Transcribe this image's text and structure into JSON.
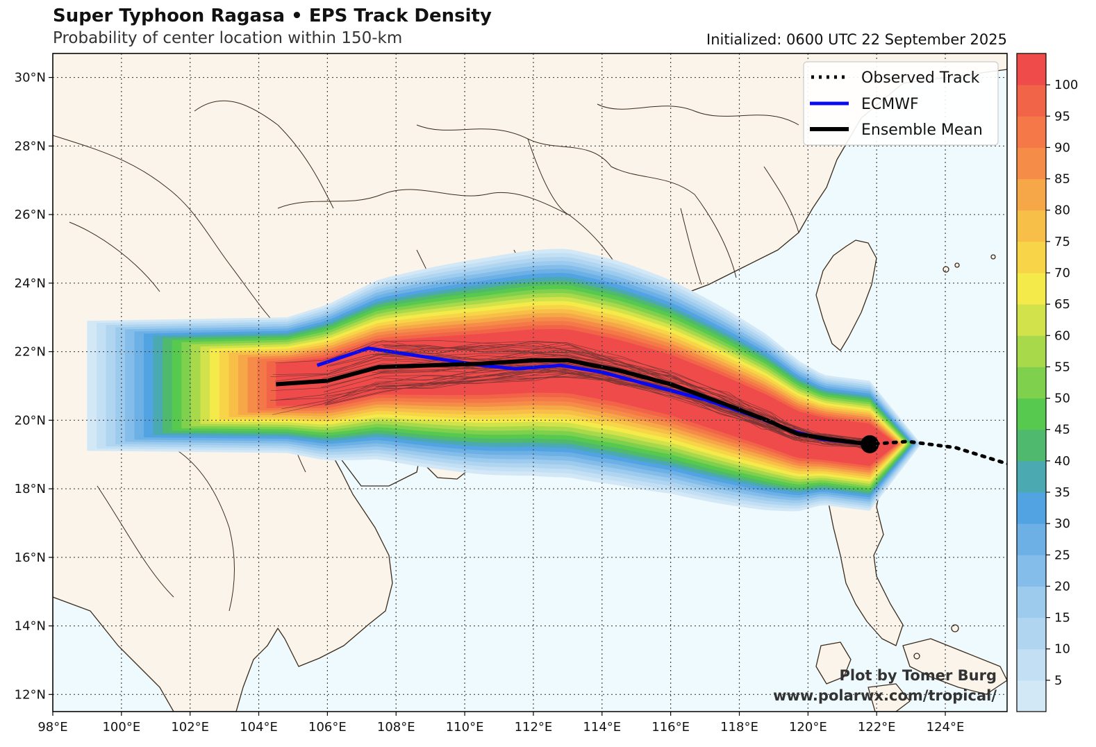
{
  "title": "Super Typhoon Ragasa • EPS Track Density",
  "subtitle": "Probability of center location within 150-km",
  "initialized": "Initialized: 0600 UTC 22 September 2025",
  "legend": {
    "observed": "Observed Track",
    "ecmwf": "ECMWF",
    "mean": "Ensemble Mean"
  },
  "credit": {
    "line1": "Plot by Tomer Burg",
    "line2": "www.polarwx.com/tropical/"
  },
  "colors": {
    "ocean": "#eefafd",
    "land": "#fbf4ea",
    "border": "#3a2a1a",
    "ecmwf": "#0a0aee",
    "mean": "#000000"
  },
  "chart_data": {
    "type": "map",
    "extent": {
      "lon": [
        98,
        125.8
      ],
      "lat": [
        11.5,
        30.7
      ]
    },
    "lon_ticks": [
      "98°E",
      "100°E",
      "102°E",
      "104°E",
      "106°E",
      "108°E",
      "110°E",
      "112°E",
      "114°E",
      "116°E",
      "118°E",
      "120°E",
      "122°E",
      "124°E"
    ],
    "lat_ticks": [
      "30°N",
      "28°N",
      "26°N",
      "24°N",
      "22°N",
      "20°N",
      "18°N",
      "16°N",
      "14°N",
      "12°N"
    ],
    "colorbar": {
      "ticks": [
        "100",
        "95",
        "90",
        "85",
        "80",
        "75",
        "70",
        "65",
        "60",
        "55",
        "50",
        "45",
        "40",
        "35",
        "30",
        "25",
        "20",
        "15",
        "10",
        "5"
      ],
      "colors": [
        "#d2e8f7",
        "#c2dff4",
        "#afd5f1",
        "#9ccbee",
        "#84bde9",
        "#6cb0e6",
        "#52a3e2",
        "#4aa9b1",
        "#4fba6e",
        "#57c94f",
        "#7fd14d",
        "#a8d94a",
        "#d2e24a",
        "#f4ea4a",
        "#f8d548",
        "#f7bf48",
        "#f6a748",
        "#f58d48",
        "#f47848",
        "#f26448",
        "#ef4b4b"
      ]
    },
    "observed_track": [
      [
        125.9,
        18.7
      ],
      [
        124.3,
        19.2
      ],
      [
        122.9,
        19.38
      ],
      [
        121.8,
        19.3
      ]
    ],
    "current_position": [
      121.8,
      19.3
    ],
    "ecmwf_track": [
      [
        105.7,
        21.6
      ],
      [
        107.2,
        22.1
      ],
      [
        108.5,
        21.9
      ],
      [
        110.5,
        21.6
      ],
      [
        111.5,
        21.5
      ],
      [
        112.8,
        21.6
      ],
      [
        114.0,
        21.4
      ],
      [
        115.5,
        21.0
      ],
      [
        117.0,
        20.6
      ],
      [
        118.5,
        20.1
      ],
      [
        119.5,
        19.7
      ],
      [
        120.4,
        19.45
      ],
      [
        121.8,
        19.3
      ]
    ],
    "ensemble_mean_track": [
      [
        104.5,
        21.05
      ],
      [
        106.0,
        21.15
      ],
      [
        107.5,
        21.55
      ],
      [
        109.0,
        21.6
      ],
      [
        110.5,
        21.65
      ],
      [
        112.0,
        21.75
      ],
      [
        113.0,
        21.75
      ],
      [
        114.5,
        21.45
      ],
      [
        116.0,
        21.05
      ],
      [
        117.5,
        20.5
      ],
      [
        118.8,
        20.0
      ],
      [
        119.7,
        19.6
      ],
      [
        120.6,
        19.45
      ],
      [
        121.8,
        19.3
      ]
    ]
  }
}
